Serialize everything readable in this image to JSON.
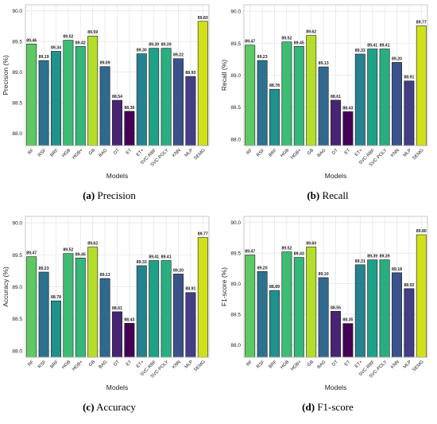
{
  "chart_data": [
    {
      "type": "bar",
      "caption_letter": "(a)",
      "caption_text": "Precision",
      "xlabel": "Models",
      "ylabel": "Precision (%)",
      "ylim": [
        87.8,
        90.1
      ],
      "yticks": [
        "88.0",
        "88.5",
        "89.0",
        "89.5",
        "90.0"
      ],
      "grid": true,
      "categories": [
        "RF",
        "RSF",
        "BRF",
        "HGB",
        "HGB+",
        "GB",
        "BAG",
        "DT",
        "ET",
        "ET+",
        "SVC-RBF",
        "SVC-POLY",
        "KNN",
        "MLP",
        "SEMG"
      ],
      "values": [
        89.46,
        89.19,
        89.34,
        89.52,
        89.42,
        89.59,
        89.09,
        88.54,
        88.36,
        89.3,
        89.39,
        89.39,
        89.22,
        88.93,
        89.83
      ],
      "labels": [
        "89.46",
        "89.19",
        "89.34",
        "89.52",
        "89.42",
        "89.59",
        "89.09",
        "88.54",
        "88.36",
        "89.30",
        "89.39",
        "89.39",
        "89.22",
        "88.93",
        "89.83"
      ]
    },
    {
      "type": "bar",
      "caption_letter": "(b)",
      "caption_text": "Recall",
      "xlabel": "Models",
      "ylabel": "Recall (%)",
      "ylim": [
        87.9,
        90.1
      ],
      "yticks": [
        "88.0",
        "88.5",
        "89.0",
        "89.5",
        "90.0"
      ],
      "grid": true,
      "categories": [
        "RF",
        "RSF",
        "BRF",
        "HGB",
        "HGB+",
        "GB",
        "BAG",
        "DT",
        "ET",
        "ET+",
        "SVC-RBF",
        "SVC-POLY",
        "KNN",
        "MLP",
        "SEMG"
      ],
      "values": [
        89.47,
        89.23,
        88.78,
        89.52,
        89.45,
        89.62,
        89.13,
        88.61,
        88.43,
        89.33,
        89.41,
        89.41,
        89.2,
        88.91,
        89.77
      ],
      "labels": [
        "89.47",
        "89.23",
        "88.78",
        "89.52",
        "89.45",
        "89.62",
        "89.13",
        "88.61",
        "88.43",
        "89.33",
        "89.41",
        "89.41",
        "89.20",
        "88.91",
        "89.77"
      ]
    },
    {
      "type": "bar",
      "caption_letter": "(c)",
      "caption_text": "Accuracy",
      "xlabel": "Models",
      "ylabel": "Accuracy (%)",
      "ylim": [
        87.9,
        90.1
      ],
      "yticks": [
        "88.0",
        "88.5",
        "89.0",
        "89.5",
        "90.0"
      ],
      "grid": true,
      "categories": [
        "RF",
        "RSF",
        "BRF",
        "HGB",
        "HGB+",
        "GB",
        "BAG",
        "DT",
        "ET",
        "ET+",
        "SVC-RBF",
        "SVC-POLY",
        "KNN",
        "MLP",
        "SEMG"
      ],
      "values": [
        89.47,
        89.23,
        88.78,
        89.52,
        89.45,
        89.62,
        89.13,
        88.61,
        88.43,
        89.33,
        89.41,
        89.41,
        89.2,
        88.91,
        89.77
      ],
      "labels": [
        "89.47",
        "89.23",
        "88.78",
        "89.52",
        "89.45",
        "89.62",
        "89.13",
        "88.61",
        "88.43",
        "89.33",
        "89.41",
        "89.41",
        "89.20",
        "88.91",
        "89.77"
      ]
    },
    {
      "type": "bar",
      "caption_letter": "(d)",
      "caption_text": "F1-score",
      "xlabel": "Models",
      "ylabel": "F1-score (%)",
      "ylim": [
        87.8,
        90.1
      ],
      "yticks": [
        "88.0",
        "88.5",
        "89.0",
        "89.5",
        "90.0"
      ],
      "grid": true,
      "categories": [
        "RF",
        "RSF",
        "BRF",
        "HGB",
        "HGB+",
        "GB",
        "BAG",
        "DT",
        "ET",
        "ET+",
        "SVC-RBF",
        "SVC-POLY",
        "KNN",
        "MLP",
        "SEMG"
      ],
      "values": [
        89.47,
        89.2,
        88.89,
        89.52,
        89.43,
        89.6,
        89.1,
        88.55,
        88.35,
        89.31,
        89.39,
        89.39,
        89.18,
        88.92,
        89.8
      ],
      "labels": [
        "89.47",
        "89.20",
        "88.89",
        "89.52",
        "89.43",
        "89.60",
        "89.10",
        "88.55",
        "88.35",
        "89.31",
        "89.39",
        "89.39",
        "89.18",
        "88.92",
        "89.80"
      ]
    }
  ],
  "palette": {
    "plot_background": "#ffffff",
    "grid": "#e6e6e6",
    "axis": "#bdbdbd",
    "text": "#222222",
    "bar_edge": "#1a1a1a",
    "bar_colors": [
      "#5ec962",
      "#2c728e",
      "#21918c",
      "#3fbc73",
      "#35b779",
      "#b5de2b",
      "#31688e",
      "#482475",
      "#440154",
      "#26828e",
      "#1fa088",
      "#28ae80",
      "#3b528b",
      "#433e85",
      "#d0e11c"
    ]
  }
}
